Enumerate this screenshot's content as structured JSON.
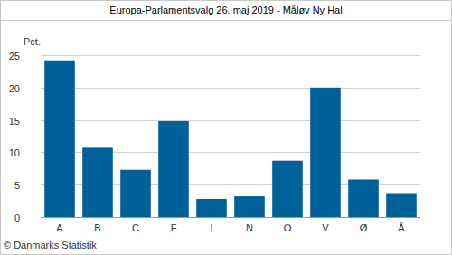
{
  "chart_data": {
    "type": "bar",
    "title": "Europa-Parlamentsvalg 26. maj 2019 - Måløv Ny Hal",
    "y_label": "Pct.",
    "source": "© Danmarks Statistik",
    "categories": [
      "A",
      "B",
      "C",
      "F",
      "I",
      "N",
      "O",
      "V",
      "Ø",
      "Å"
    ],
    "values": [
      24.2,
      10.7,
      7.3,
      14.8,
      2.8,
      3.2,
      8.7,
      20.0,
      5.8,
      3.7
    ],
    "color": "#006199",
    "ylim": [
      0,
      25
    ],
    "yticks": [
      0,
      5,
      10,
      15,
      20,
      25
    ],
    "grid": true
  }
}
